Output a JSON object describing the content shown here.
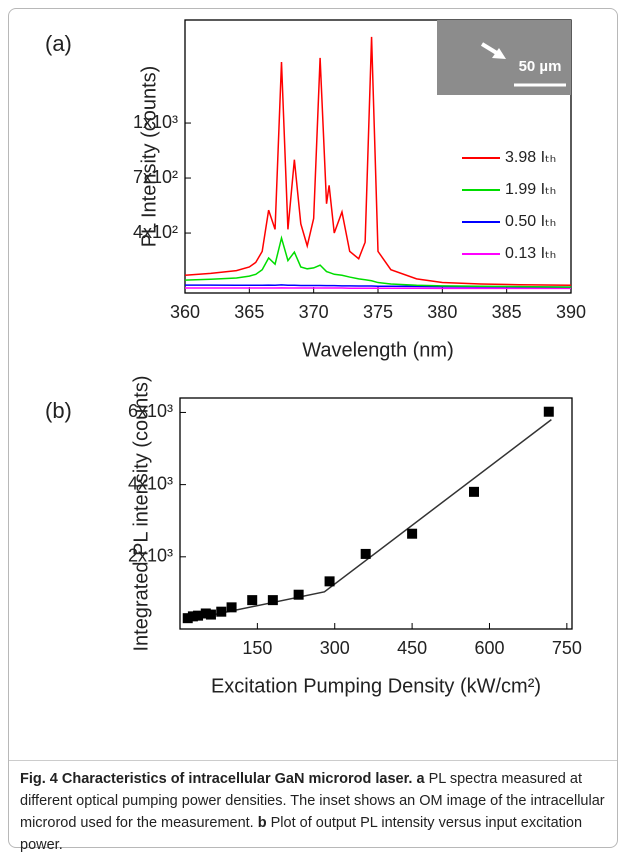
{
  "chart_data": [
    {
      "type": "line",
      "panel_label": "(a)",
      "x_label": "Wavelength (nm)",
      "y_label": "PL Intensity (counts)",
      "inset_label": "50 µm",
      "x": [
        360,
        362,
        364,
        365,
        365.5,
        366,
        366.5,
        367,
        367.5,
        368,
        368.5,
        369,
        369.5,
        370,
        370.5,
        371,
        371.2,
        371.6,
        372.2,
        372.8,
        373.5,
        374,
        374.5,
        375,
        376,
        378,
        380,
        383,
        386,
        390
      ],
      "series": [
        {
          "name": "3.98 Iₜₕ",
          "color": "#ff0000",
          "values": [
            170,
            180,
            195,
            215,
            240,
            300,
            525,
            420,
            1333,
            420,
            800,
            450,
            330,
            480,
            1355,
            560,
            660,
            400,
            515,
            300,
            260,
            350,
            1470,
            300,
            200,
            150,
            130,
            122,
            118,
            115
          ]
        },
        {
          "name": "1.99 Iₜₕ",
          "color": "#00dd00",
          "values": [
            143,
            148,
            155,
            165,
            175,
            200,
            264,
            230,
            373,
            250,
            296,
            215,
            205,
            210,
            225,
            190,
            185,
            175,
            170,
            160,
            150,
            145,
            140,
            130,
            122,
            115,
            112,
            110,
            108,
            105
          ]
        },
        {
          "name": "0.50 Iₜₕ",
          "color": "#0000ff",
          "values": [
            116,
            116,
            115,
            115,
            115,
            115,
            116,
            115,
            117,
            115,
            115,
            114,
            114,
            114,
            114,
            113,
            113,
            113,
            112,
            112,
            111,
            111,
            111,
            110,
            110,
            109,
            108,
            107,
            106,
            105
          ]
        },
        {
          "name": "0.13 Iₜₕ",
          "color": "#ff00ff",
          "values": [
            100,
            100,
            100,
            100,
            100,
            100,
            100,
            100,
            101,
            100,
            100,
            100,
            100,
            100,
            100,
            100,
            100,
            100,
            100,
            99,
            99,
            99,
            99,
            99,
            99,
            99,
            98,
            98,
            98,
            98
          ]
        }
      ],
      "xlim": [
        360,
        390
      ],
      "xticks": [
        360,
        365,
        370,
        375,
        380,
        385,
        390
      ],
      "ylim": [
        73,
        1562
      ],
      "yticks": [
        {
          "value": 400,
          "label": "4x10²"
        },
        {
          "value": 700,
          "label": "7x10²"
        },
        {
          "value": 1000,
          "label": "1x10³"
        }
      ]
    },
    {
      "type": "scatter",
      "panel_label": "(b)",
      "x_label": "Excitation Pumping Density (kW/cm²)",
      "y_label": "Integrated PL intensity (counts)",
      "color": "#000000",
      "x": [
        15,
        25,
        35,
        50,
        60,
        80,
        100,
        140,
        180,
        230,
        290,
        360,
        450,
        570,
        715
      ],
      "values": [
        300,
        350,
        370,
        430,
        400,
        480,
        600,
        800,
        800,
        950,
        1320,
        2080,
        2640,
        3800,
        6020
      ],
      "fit": {
        "x": [
          15,
          280,
          720
        ],
        "values": [
          250,
          1030,
          5800
        ]
      },
      "xlim": [
        0,
        760
      ],
      "xticks": [
        150,
        300,
        450,
        600,
        750
      ],
      "ylim": [
        0,
        6400
      ],
      "yticks": [
        {
          "value": 2000,
          "label": "2x10³"
        },
        {
          "value": 4000,
          "label": "4x10³"
        },
        {
          "value": 6000,
          "label": "6x10³"
        }
      ]
    }
  ],
  "caption": {
    "title": "Fig. 4 Characteristics of intracellular GaN microrod laser.",
    "parts": [
      {
        "label": "a",
        "text": "PL spectra measured at different optical pumping power densities. The inset shows an OM image of the intracellular microrod used for the measurement."
      },
      {
        "label": "b",
        "text": "Plot of output PL intensity versus input excitation power."
      }
    ]
  }
}
